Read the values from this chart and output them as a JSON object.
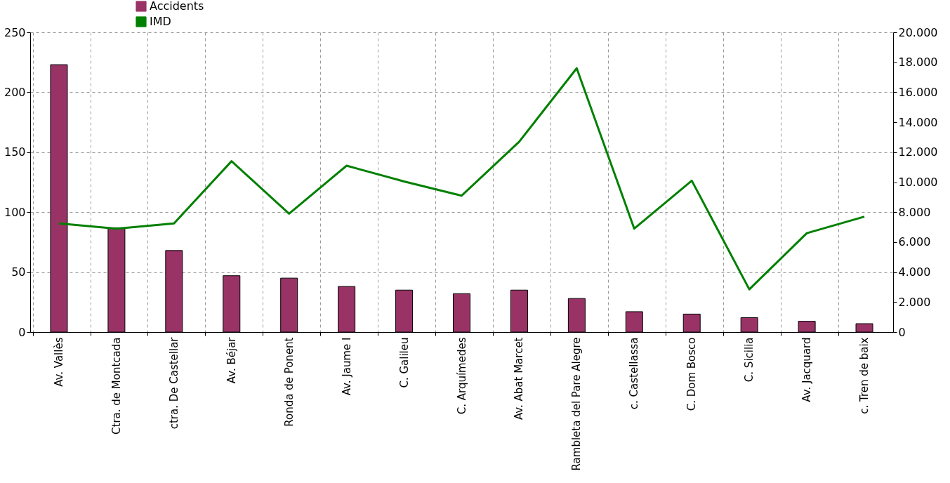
{
  "chart_data": {
    "type": "bar",
    "categories": [
      "Av. Vallès",
      "Ctra. de Montcada",
      "ctra. De Castellar",
      "Av. Béjar",
      "Ronda de Ponent",
      "Av. Jaume I",
      "C. Galileu",
      "C. Arquímedes",
      "Av. Abat Marcet",
      "Rambleta del Pare Alegre",
      "c. Castellassa",
      "C. Dom Bosco",
      "C. Sicilia",
      "Av. Jacquard",
      "c. Tren de baix"
    ],
    "series": [
      {
        "name": "Accidents",
        "color": "#993366",
        "values": [
          223,
          87,
          68,
          47,
          45,
          38,
          35,
          32,
          35,
          28,
          17,
          15,
          12,
          9,
          7
        ]
      },
      {
        "name": "IMD",
        "type": "line",
        "axis": "y2",
        "color": "#008000",
        "values": [
          7250,
          6900,
          7250,
          11400,
          7900,
          11100,
          10050,
          9100,
          12700,
          17600,
          6900,
          10100,
          2850,
          6600,
          7700
        ]
      }
    ],
    "ylim": [
      0,
      250
    ],
    "yticks": [
      0,
      50,
      100,
      150,
      200,
      250
    ],
    "y2lim": [
      0,
      20000
    ],
    "y2ticks": [
      {
        "value": 0,
        "label": "0"
      },
      {
        "value": 2000,
        "label": "2.000"
      },
      {
        "value": 4000,
        "label": "4.000"
      },
      {
        "value": 6000,
        "label": "6.000"
      },
      {
        "value": 8000,
        "label": "8.000"
      },
      {
        "value": 10000,
        "label": "10.000"
      },
      {
        "value": 12000,
        "label": "12.000"
      },
      {
        "value": 14000,
        "label": "14.000"
      },
      {
        "value": 16000,
        "label": "16.000"
      },
      {
        "value": 18000,
        "label": "18.000"
      },
      {
        "value": 20000,
        "label": "20.000"
      }
    ],
    "grid": true,
    "legend": "top left"
  }
}
